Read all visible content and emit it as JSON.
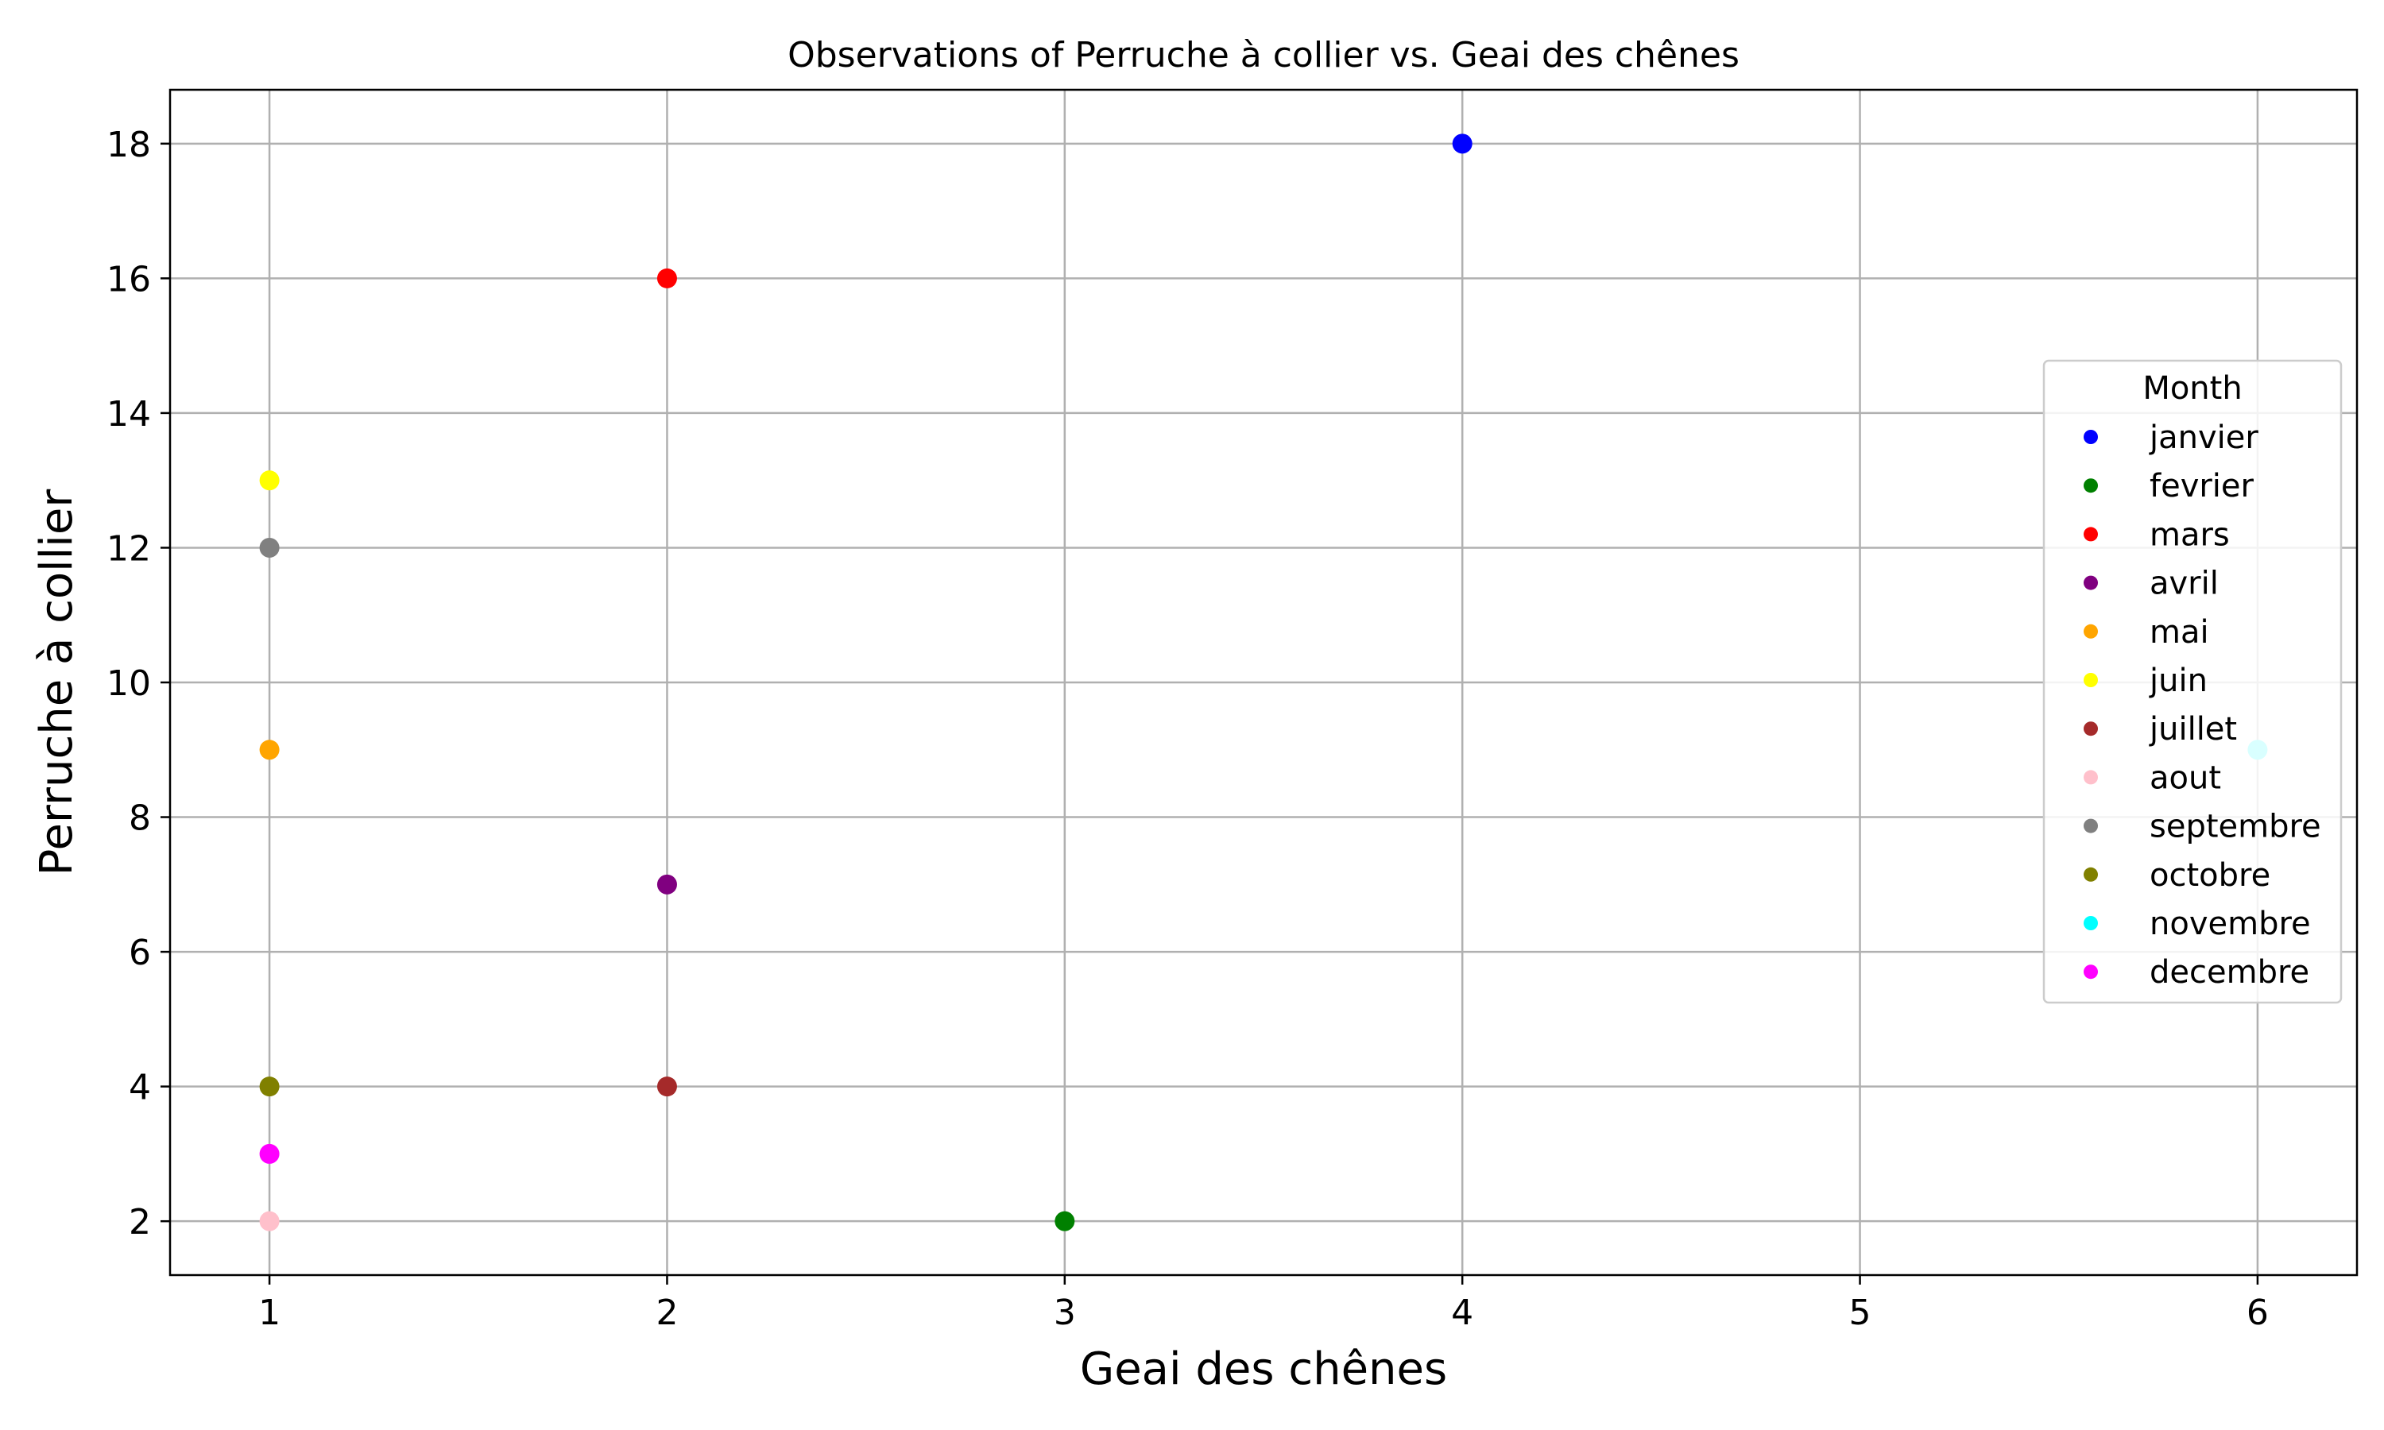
{
  "chart_data": {
    "type": "scatter",
    "title": "Observations of Perruche à collier vs. Geai des chênes",
    "xlabel": "Geai des chênes",
    "ylabel": "Perruche à collier",
    "xlim": [
      0.75,
      6.25
    ],
    "ylim": [
      1.2,
      18.8
    ],
    "xticks": [
      1,
      2,
      3,
      4,
      5,
      6
    ],
    "yticks": [
      2,
      4,
      6,
      8,
      10,
      12,
      14,
      16,
      18
    ],
    "grid": true,
    "legend": {
      "title": "Month",
      "placement": "center-right"
    },
    "series": [
      {
        "name": "janvier",
        "color": "#0000ff",
        "points": [
          {
            "x": 4,
            "y": 18
          }
        ]
      },
      {
        "name": "fevrier",
        "color": "#008000",
        "points": [
          {
            "x": 3,
            "y": 2
          }
        ]
      },
      {
        "name": "mars",
        "color": "#ff0000",
        "points": [
          {
            "x": 2,
            "y": 16
          }
        ]
      },
      {
        "name": "avril",
        "color": "#800080",
        "points": [
          {
            "x": 2,
            "y": 7
          }
        ]
      },
      {
        "name": "mai",
        "color": "#ffa500",
        "points": [
          {
            "x": 1,
            "y": 9
          }
        ]
      },
      {
        "name": "juin",
        "color": "#ffff00",
        "points": [
          {
            "x": 1,
            "y": 13
          }
        ]
      },
      {
        "name": "juillet",
        "color": "#a52a2a",
        "points": [
          {
            "x": 2,
            "y": 4
          }
        ]
      },
      {
        "name": "aout",
        "color": "#ffc0cb",
        "points": [
          {
            "x": 1,
            "y": 2
          }
        ]
      },
      {
        "name": "septembre",
        "color": "#808080",
        "points": [
          {
            "x": 1,
            "y": 12
          }
        ]
      },
      {
        "name": "octobre",
        "color": "#808000",
        "points": [
          {
            "x": 1,
            "y": 4
          }
        ]
      },
      {
        "name": "novembre",
        "color": "#00ffff",
        "points": [
          {
            "x": 6,
            "y": 9
          }
        ]
      },
      {
        "name": "decembre",
        "color": "#ff00ff",
        "points": [
          {
            "x": 1,
            "y": 3
          }
        ]
      }
    ]
  }
}
